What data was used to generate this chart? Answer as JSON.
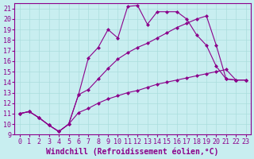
{
  "xlabel": "Windchill (Refroidissement éolien,°C)",
  "bg_color": "#c8eef0",
  "line_color": "#8b008b",
  "xlim": [
    -0.5,
    23.5
  ],
  "ylim": [
    9,
    21.5
  ],
  "xticks": [
    0,
    1,
    2,
    3,
    4,
    5,
    6,
    7,
    8,
    9,
    10,
    11,
    12,
    13,
    14,
    15,
    16,
    17,
    18,
    19,
    20,
    21,
    22,
    23
  ],
  "yticks": [
    9,
    10,
    11,
    12,
    13,
    14,
    15,
    16,
    17,
    18,
    19,
    20,
    21
  ],
  "line1_x": [
    0,
    1,
    2,
    3,
    4,
    5,
    6,
    7,
    8,
    9,
    10,
    11,
    12,
    13,
    14,
    15,
    16,
    17,
    18,
    19,
    20,
    21,
    22,
    23
  ],
  "line1_y": [
    11.0,
    11.2,
    10.6,
    9.9,
    9.3,
    10.0,
    11.1,
    11.5,
    12.0,
    12.4,
    12.7,
    13.0,
    13.2,
    13.5,
    13.8,
    14.0,
    14.2,
    14.4,
    14.6,
    14.8,
    15.0,
    15.2,
    14.2,
    14.2
  ],
  "line2_x": [
    0,
    1,
    2,
    3,
    4,
    5,
    6,
    7,
    8,
    9,
    10,
    11,
    12,
    13,
    14,
    15,
    16,
    17,
    18,
    19,
    20,
    21,
    22,
    23
  ],
  "line2_y": [
    11.0,
    11.2,
    10.6,
    9.9,
    9.3,
    10.0,
    12.8,
    13.3,
    14.3,
    15.3,
    16.2,
    16.8,
    17.3,
    17.7,
    18.2,
    18.7,
    19.2,
    19.6,
    20.0,
    20.3,
    17.5,
    14.3,
    14.2,
    14.2
  ],
  "line3_x": [
    0,
    1,
    2,
    3,
    4,
    5,
    6,
    7,
    8,
    9,
    10,
    11,
    12,
    13,
    14,
    15,
    16,
    17,
    18,
    19,
    20,
    21,
    22,
    23
  ],
  "line3_y": [
    11.0,
    11.2,
    10.6,
    9.9,
    9.3,
    10.0,
    12.8,
    16.3,
    17.3,
    19.0,
    18.2,
    21.2,
    21.3,
    19.5,
    20.7,
    20.7,
    20.7,
    20.0,
    18.5,
    17.5,
    15.5,
    14.3,
    14.2,
    14.2
  ],
  "grid_color": "#aadddd",
  "xlabel_fontsize": 7,
  "tick_fontsize": 6
}
